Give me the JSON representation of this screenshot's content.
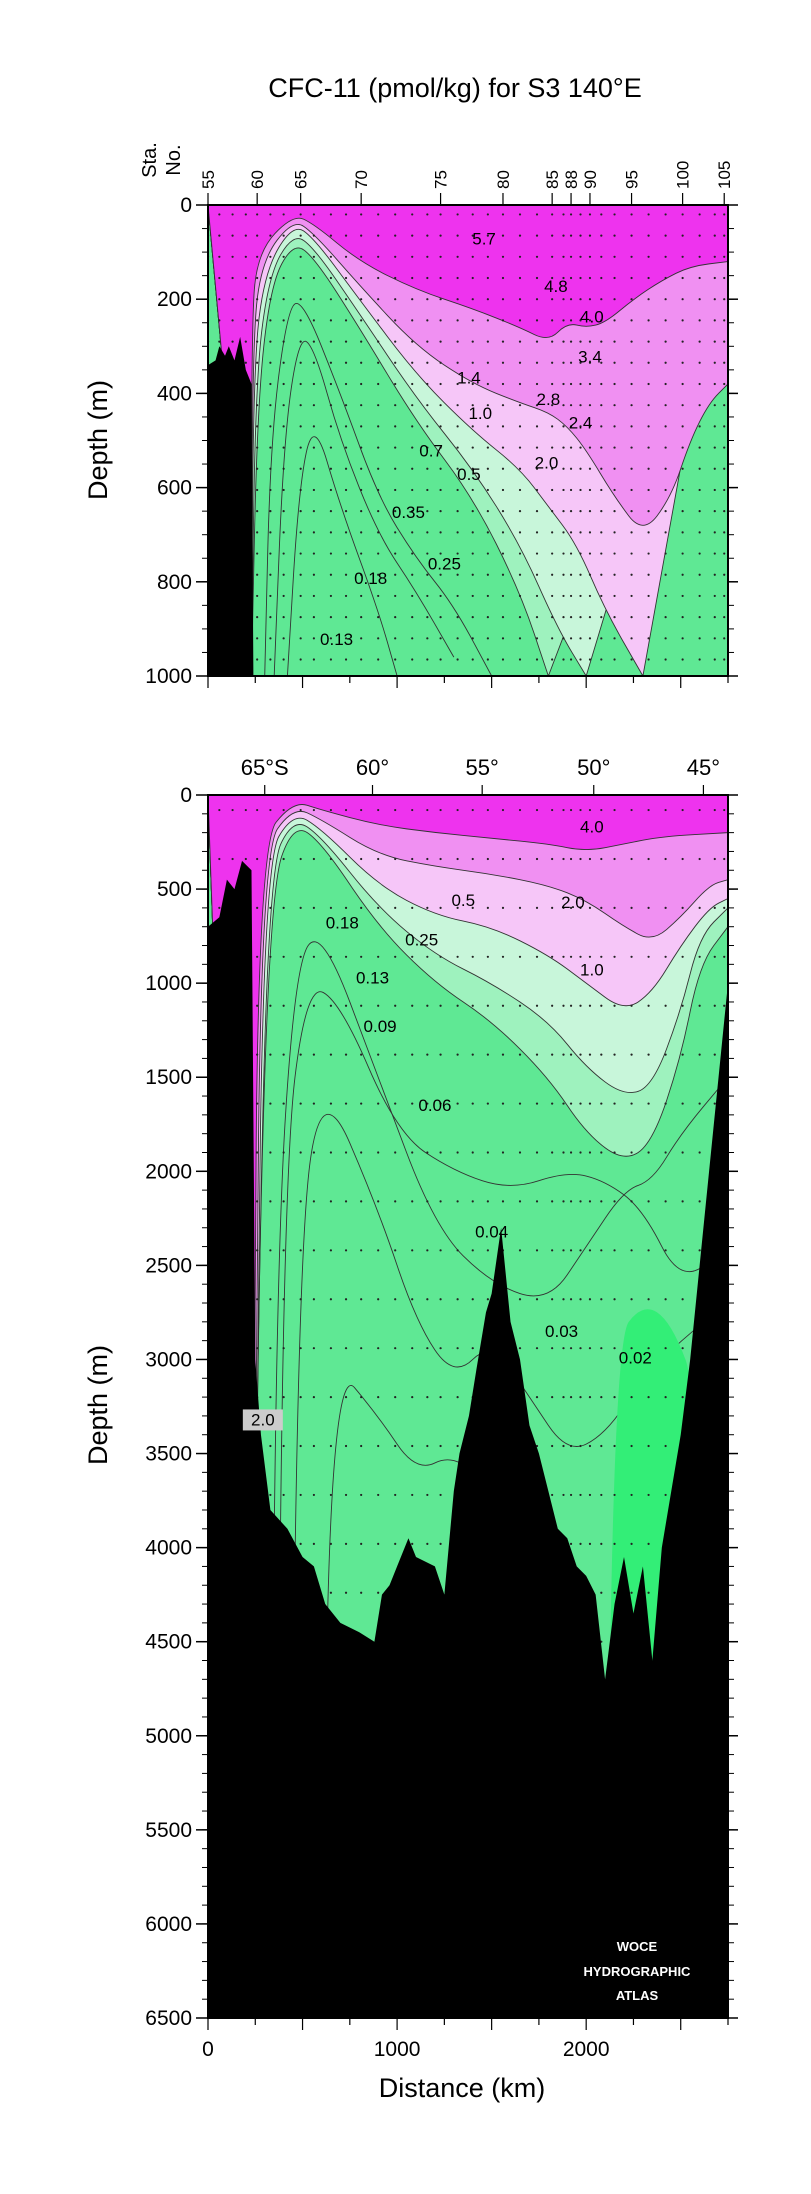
{
  "chart_data": [
    {
      "type": "contour",
      "title": "CFC-11 (pmol/kg) for S3 140°E",
      "xlabel": "",
      "ylabel": "Depth (m)",
      "ylim": [
        0,
        1000
      ],
      "xlim": [
        0,
        2750
      ],
      "y_ticks": [
        "0",
        "200",
        "400",
        "600",
        "800",
        "1000"
      ],
      "station_axis_label": [
        "Sta.",
        "No."
      ],
      "stations": [
        {
          "label": "55",
          "km": 0
        },
        {
          "label": "60",
          "km": 260
        },
        {
          "label": "65",
          "km": 490
        },
        {
          "label": "70",
          "km": 810
        },
        {
          "label": "75",
          "km": 1230
        },
        {
          "label": "80",
          "km": 1560
        },
        {
          "label": "85",
          "km": 1820
        },
        {
          "label": "88",
          "km": 1920
        },
        {
          "label": "90",
          "km": 2020
        },
        {
          "label": "95",
          "km": 2240
        },
        {
          "label": "100",
          "km": 2510
        },
        {
          "label": "105",
          "km": 2730
        }
      ],
      "contour_labels": [
        {
          "text": "5.7",
          "km": 1460,
          "depth": 80
        },
        {
          "text": "4.8",
          "km": 1840,
          "depth": 180
        },
        {
          "text": "4.0",
          "km": 2030,
          "depth": 245
        },
        {
          "text": "3.4",
          "km": 2020,
          "depth": 330
        },
        {
          "text": "1.4",
          "km": 1380,
          "depth": 375
        },
        {
          "text": "2.8",
          "km": 1800,
          "depth": 420
        },
        {
          "text": "1.0",
          "km": 1440,
          "depth": 450
        },
        {
          "text": "2.4",
          "km": 1970,
          "depth": 470
        },
        {
          "text": "0.7",
          "km": 1180,
          "depth": 530
        },
        {
          "text": "2.0",
          "km": 1790,
          "depth": 555
        },
        {
          "text": "0.5",
          "km": 1380,
          "depth": 580
        },
        {
          "text": "0.35",
          "km": 1060,
          "depth": 660
        },
        {
          "text": "0.25",
          "km": 1250,
          "depth": 770
        },
        {
          "text": "0.18",
          "km": 860,
          "depth": 800
        },
        {
          "text": "0.13",
          "km": 680,
          "depth": 930
        }
      ]
    },
    {
      "type": "contour",
      "title": "",
      "xlabel": "Distance (km)",
      "ylabel": "Depth (m)",
      "ylim": [
        0,
        6500
      ],
      "xlim": [
        0,
        2750
      ],
      "x_ticks": [
        "0",
        "1000",
        "2000"
      ],
      "y_ticks": [
        "0",
        "500",
        "1000",
        "1500",
        "2000",
        "2500",
        "3000",
        "3500",
        "4000",
        "4500",
        "5000",
        "5500",
        "6000",
        "6500"
      ],
      "latitude_labels": [
        {
          "text": "65°S",
          "km": 300
        },
        {
          "text": "60°",
          "km": 870
        },
        {
          "text": "55°",
          "km": 1450
        },
        {
          "text": "50°",
          "km": 2040
        },
        {
          "text": "45°",
          "km": 2620
        }
      ],
      "contour_labels": [
        {
          "text": "4.0",
          "km": 2030,
          "depth": 190
        },
        {
          "text": "0.5",
          "km": 1350,
          "depth": 580
        },
        {
          "text": "2.0",
          "km": 1930,
          "depth": 590
        },
        {
          "text": "0.18",
          "km": 710,
          "depth": 700
        },
        {
          "text": "0.25",
          "km": 1130,
          "depth": 790
        },
        {
          "text": "1.0",
          "km": 2030,
          "depth": 950
        },
        {
          "text": "0.13",
          "km": 870,
          "depth": 990
        },
        {
          "text": "0.09",
          "km": 910,
          "depth": 1250
        },
        {
          "text": "0.06",
          "km": 1200,
          "depth": 1670
        },
        {
          "text": "0.04",
          "km": 1500,
          "depth": 2340
        },
        {
          "text": "0.03",
          "km": 1870,
          "depth": 2870
        },
        {
          "text": "0.02",
          "km": 2260,
          "depth": 3010
        },
        {
          "text": "2.0",
          "km": 290,
          "depth": 3340,
          "boxed": true
        }
      ]
    }
  ],
  "logo": {
    "lines": [
      "WOCE",
      "HYDROGRAPHIC",
      "ATLAS"
    ]
  },
  "colors": {
    "magenta": "#ee33ee",
    "pink": "#f090f2",
    "light_pink": "#f6c6f8",
    "mint": "#c8f6da",
    "light_green": "#9ef2be",
    "green": "#5fe894",
    "bright_green": "#33ee77",
    "topography": "#000000"
  }
}
